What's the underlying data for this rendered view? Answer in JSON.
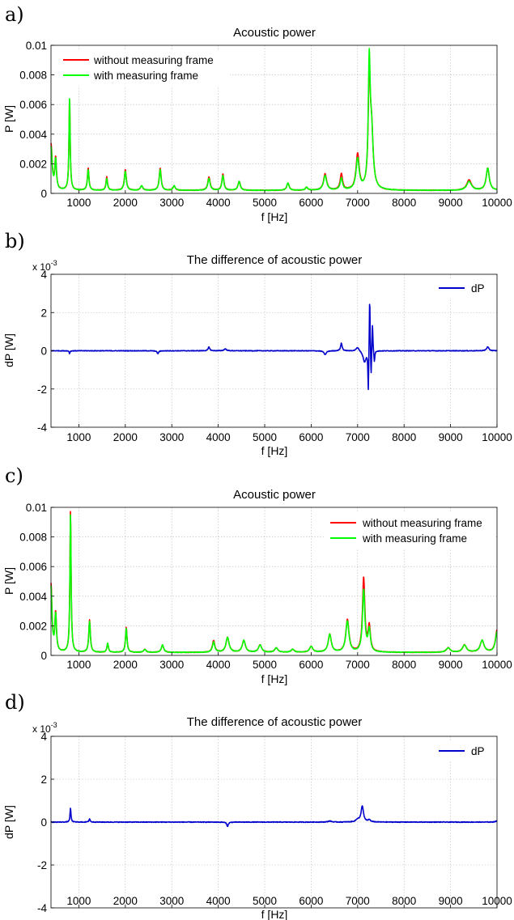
{
  "chart_data": [
    {
      "panel_label": "a)",
      "type": "line",
      "title": "Acoustic power",
      "xlabel": "f [Hz]",
      "ylabel": "P [W]",
      "xlim": [
        400,
        10000
      ],
      "ylim": [
        0,
        0.01
      ],
      "xticks": [
        1000,
        2000,
        3000,
        4000,
        5000,
        6000,
        7000,
        8000,
        9000,
        10000
      ],
      "yticks": [
        0,
        0.002,
        0.004,
        0.006,
        0.008,
        0.01
      ],
      "ytick_labels": [
        "0",
        "0.002",
        "0.004",
        "0.006",
        "0.008",
        "0.01"
      ],
      "grid": true,
      "legend_position": "top-left",
      "series": [
        {
          "name": "without measuring frame",
          "color": "#ff0000",
          "baseline": 0.0002,
          "peaks": [
            {
              "x": 400,
              "y": 0.0033,
              "w": 30
            },
            {
              "x": 500,
              "y": 0.0023,
              "w": 20
            },
            {
              "x": 800,
              "y": 0.0064,
              "w": 15
            },
            {
              "x": 1200,
              "y": 0.0017,
              "w": 20
            },
            {
              "x": 1600,
              "y": 0.0011,
              "w": 20
            },
            {
              "x": 2000,
              "y": 0.0016,
              "w": 25
            },
            {
              "x": 2350,
              "y": 0.0005,
              "w": 30
            },
            {
              "x": 2750,
              "y": 0.0017,
              "w": 25
            },
            {
              "x": 3050,
              "y": 0.0005,
              "w": 30
            },
            {
              "x": 3800,
              "y": 0.0011,
              "w": 30
            },
            {
              "x": 4100,
              "y": 0.0013,
              "w": 25
            },
            {
              "x": 4450,
              "y": 0.0008,
              "w": 30
            },
            {
              "x": 5500,
              "y": 0.0007,
              "w": 30
            },
            {
              "x": 5900,
              "y": 0.0004,
              "w": 30
            },
            {
              "x": 6300,
              "y": 0.0013,
              "w": 40
            },
            {
              "x": 6650,
              "y": 0.0013,
              "w": 30
            },
            {
              "x": 7000,
              "y": 0.0026,
              "w": 40
            },
            {
              "x": 7250,
              "y": 0.0075,
              "w": 25
            },
            {
              "x": 7300,
              "y": 0.004,
              "w": 40
            },
            {
              "x": 8350,
              "y": 0.0002,
              "w": 40
            },
            {
              "x": 9400,
              "y": 0.0009,
              "w": 60
            },
            {
              "x": 9800,
              "y": 0.0017,
              "w": 40
            }
          ]
        },
        {
          "name": "with measuring frame",
          "color": "#00ff00",
          "baseline": 0.0002,
          "peaks": [
            {
              "x": 400,
              "y": 0.0031,
              "w": 30
            },
            {
              "x": 500,
              "y": 0.0022,
              "w": 20
            },
            {
              "x": 800,
              "y": 0.0065,
              "w": 15
            },
            {
              "x": 1200,
              "y": 0.0016,
              "w": 20
            },
            {
              "x": 1600,
              "y": 0.001,
              "w": 20
            },
            {
              "x": 2000,
              "y": 0.0015,
              "w": 25
            },
            {
              "x": 2350,
              "y": 0.0005,
              "w": 30
            },
            {
              "x": 2750,
              "y": 0.0016,
              "w": 25
            },
            {
              "x": 3050,
              "y": 0.0005,
              "w": 30
            },
            {
              "x": 3800,
              "y": 0.001,
              "w": 30
            },
            {
              "x": 4100,
              "y": 0.0012,
              "w": 25
            },
            {
              "x": 4450,
              "y": 0.0008,
              "w": 30
            },
            {
              "x": 5500,
              "y": 0.0007,
              "w": 30
            },
            {
              "x": 5900,
              "y": 0.0004,
              "w": 30
            },
            {
              "x": 6300,
              "y": 0.0012,
              "w": 40
            },
            {
              "x": 6650,
              "y": 0.001,
              "w": 30
            },
            {
              "x": 7000,
              "y": 0.0023,
              "w": 40
            },
            {
              "x": 7250,
              "y": 0.0083,
              "w": 25
            },
            {
              "x": 7300,
              "y": 0.0038,
              "w": 40
            },
            {
              "x": 8350,
              "y": 0.0002,
              "w": 40
            },
            {
              "x": 9400,
              "y": 0.0008,
              "w": 60
            },
            {
              "x": 9800,
              "y": 0.0017,
              "w": 40
            }
          ]
        }
      ]
    },
    {
      "panel_label": "b)",
      "type": "line",
      "title": "The difference of acoustic power",
      "xlabel": "f [Hz]",
      "ylabel": "dP [W]",
      "y_scale_label": "x 10",
      "y_scale_exponent": "-3",
      "xlim": [
        400,
        10000
      ],
      "ylim": [
        -4,
        4
      ],
      "xticks": [
        1000,
        2000,
        3000,
        4000,
        5000,
        6000,
        7000,
        8000,
        9000,
        10000
      ],
      "yticks": [
        -4,
        -2,
        0,
        2,
        4
      ],
      "ytick_labels": [
        "-4",
        "-2",
        "0",
        "2",
        "4"
      ],
      "grid": true,
      "legend_position": "top-right",
      "series": [
        {
          "name": "dP",
          "color": "#0000cc",
          "baseline": 0,
          "peaks": [
            {
              "x": 800,
              "y": -0.15,
              "w": 10
            },
            {
              "x": 2700,
              "y": -0.15,
              "w": 20
            },
            {
              "x": 3800,
              "y": 0.2,
              "w": 20
            },
            {
              "x": 4150,
              "y": 0.1,
              "w": 30
            },
            {
              "x": 6300,
              "y": -0.2,
              "w": 30
            },
            {
              "x": 6650,
              "y": 0.4,
              "w": 20
            },
            {
              "x": 7000,
              "y": 0.2,
              "w": 40
            },
            {
              "x": 7150,
              "y": -0.6,
              "w": 40
            },
            {
              "x": 7230,
              "y": -2.2,
              "w": 10
            },
            {
              "x": 7260,
              "y": 3.1,
              "w": 10
            },
            {
              "x": 7290,
              "y": -1.5,
              "w": 10
            },
            {
              "x": 7320,
              "y": 1.5,
              "w": 10
            },
            {
              "x": 7360,
              "y": -0.6,
              "w": 12
            },
            {
              "x": 9800,
              "y": 0.2,
              "w": 30
            }
          ]
        }
      ]
    },
    {
      "panel_label": "c)",
      "type": "line",
      "title": "Acoustic power",
      "xlabel": "f [Hz]",
      "ylabel": "P [W]",
      "xlim": [
        400,
        10000
      ],
      "ylim": [
        0,
        0.01
      ],
      "xticks": [
        1000,
        2000,
        3000,
        4000,
        5000,
        6000,
        7000,
        8000,
        9000,
        10000
      ],
      "yticks": [
        0,
        0.002,
        0.004,
        0.006,
        0.008,
        0.01
      ],
      "ytick_labels": [
        "0",
        "0.002",
        "0.004",
        "0.006",
        "0.008",
        "0.01"
      ],
      "grid": true,
      "legend_position": "top-right",
      "series": [
        {
          "name": "without measuring frame",
          "color": "#ff0000",
          "baseline": 0.0002,
          "peaks": [
            {
              "x": 400,
              "y": 0.0048,
              "w": 25
            },
            {
              "x": 500,
              "y": 0.0028,
              "w": 20
            },
            {
              "x": 820,
              "y": 0.0098,
              "w": 15
            },
            {
              "x": 1230,
              "y": 0.0024,
              "w": 20
            },
            {
              "x": 1620,
              "y": 0.0008,
              "w": 20
            },
            {
              "x": 2020,
              "y": 0.0019,
              "w": 20
            },
            {
              "x": 2420,
              "y": 0.0004,
              "w": 30
            },
            {
              "x": 2800,
              "y": 0.0007,
              "w": 30
            },
            {
              "x": 3900,
              "y": 0.001,
              "w": 30
            },
            {
              "x": 4200,
              "y": 0.0012,
              "w": 40
            },
            {
              "x": 4550,
              "y": 0.001,
              "w": 40
            },
            {
              "x": 4900,
              "y": 0.0007,
              "w": 40
            },
            {
              "x": 5250,
              "y": 0.0005,
              "w": 40
            },
            {
              "x": 5600,
              "y": 0.0004,
              "w": 40
            },
            {
              "x": 6000,
              "y": 0.0006,
              "w": 40
            },
            {
              "x": 6400,
              "y": 0.0014,
              "w": 40
            },
            {
              "x": 6780,
              "y": 0.0024,
              "w": 40
            },
            {
              "x": 7130,
              "y": 0.0052,
              "w": 30
            },
            {
              "x": 7250,
              "y": 0.0019,
              "w": 30
            },
            {
              "x": 8950,
              "y": 0.0005,
              "w": 50
            },
            {
              "x": 9300,
              "y": 0.0007,
              "w": 50
            },
            {
              "x": 9680,
              "y": 0.001,
              "w": 50
            },
            {
              "x": 10000,
              "y": 0.0017,
              "w": 40
            }
          ]
        },
        {
          "name": "with measuring frame",
          "color": "#00ff00",
          "baseline": 0.0002,
          "peaks": [
            {
              "x": 400,
              "y": 0.0046,
              "w": 25
            },
            {
              "x": 500,
              "y": 0.0027,
              "w": 20
            },
            {
              "x": 820,
              "y": 0.0096,
              "w": 15
            },
            {
              "x": 1230,
              "y": 0.0023,
              "w": 20
            },
            {
              "x": 1620,
              "y": 0.0008,
              "w": 20
            },
            {
              "x": 2020,
              "y": 0.0018,
              "w": 20
            },
            {
              "x": 2420,
              "y": 0.0004,
              "w": 30
            },
            {
              "x": 2800,
              "y": 0.0007,
              "w": 30
            },
            {
              "x": 3900,
              "y": 0.0009,
              "w": 30
            },
            {
              "x": 4200,
              "y": 0.0012,
              "w": 40
            },
            {
              "x": 4550,
              "y": 0.001,
              "w": 40
            },
            {
              "x": 4900,
              "y": 0.0007,
              "w": 40
            },
            {
              "x": 5250,
              "y": 0.0005,
              "w": 40
            },
            {
              "x": 5600,
              "y": 0.0004,
              "w": 40
            },
            {
              "x": 6000,
              "y": 0.0006,
              "w": 40
            },
            {
              "x": 6400,
              "y": 0.0014,
              "w": 40
            },
            {
              "x": 6780,
              "y": 0.0023,
              "w": 40
            },
            {
              "x": 7130,
              "y": 0.0044,
              "w": 30
            },
            {
              "x": 7250,
              "y": 0.0017,
              "w": 30
            },
            {
              "x": 8950,
              "y": 0.0005,
              "w": 50
            },
            {
              "x": 9300,
              "y": 0.0007,
              "w": 50
            },
            {
              "x": 9680,
              "y": 0.001,
              "w": 50
            },
            {
              "x": 10000,
              "y": 0.0016,
              "w": 40
            }
          ]
        }
      ]
    },
    {
      "panel_label": "d)",
      "type": "line",
      "title": "The difference of acoustic power",
      "xlabel": "f [Hz]",
      "ylabel": "dP [W]",
      "y_scale_label": "x 10",
      "y_scale_exponent": "-3",
      "xlim": [
        400,
        10000
      ],
      "ylim": [
        -4,
        4
      ],
      "xticks": [
        1000,
        2000,
        3000,
        4000,
        5000,
        6000,
        7000,
        8000,
        9000,
        10000
      ],
      "yticks": [
        -4,
        -2,
        0,
        2,
        4
      ],
      "ytick_labels": [
        "-4",
        "-2",
        "0",
        "2",
        "4"
      ],
      "grid": true,
      "legend_position": "top-right",
      "series": [
        {
          "name": "dP",
          "color": "#0000cc",
          "baseline": 0,
          "peaks": [
            {
              "x": 820,
              "y": 0.65,
              "w": 12
            },
            {
              "x": 1230,
              "y": 0.15,
              "w": 15
            },
            {
              "x": 4200,
              "y": -0.2,
              "w": 20
            },
            {
              "x": 6400,
              "y": 0.05,
              "w": 40
            },
            {
              "x": 7000,
              "y": 0.12,
              "w": 40
            },
            {
              "x": 7100,
              "y": 0.75,
              "w": 30
            },
            {
              "x": 7250,
              "y": 0.1,
              "w": 30
            },
            {
              "x": 10000,
              "y": 0.05,
              "w": 40
            }
          ]
        }
      ]
    }
  ]
}
